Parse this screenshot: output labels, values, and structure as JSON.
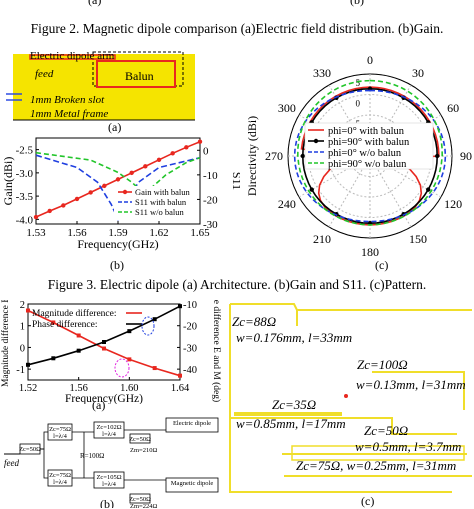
{
  "top_labels": {
    "a": "(a)",
    "b": "(b)"
  },
  "figure2_caption": "Figure 2. Magnetic dipole comparison (a)Electric field distribution. (b)Gain.",
  "figure3_caption": "Figure 3. Electric dipole (a) Architecture. (b)Gain and S11. (c)Pattern.",
  "fig3a": {
    "labels": {
      "arm": "Electric dipole arm",
      "feed": "feed",
      "balun": "Balun",
      "slot": "1mm Broken slot",
      "frame": "1mm Metal frame"
    },
    "sublabel": "(a)",
    "colors": {
      "substrate": "#f5e400",
      "outline": "#e8271f"
    }
  },
  "fig3b": {
    "sublabel": "(b)",
    "chart_data": {
      "type": "line",
      "xlabel": "Frequency(GHz)",
      "ylabel": "Gain(dBi)",
      "y2label": "S11",
      "x_ticks": [
        "1.53",
        "1.56",
        "1.59",
        "1.62",
        "1.65"
      ],
      "y_ticks": [
        "-2.5",
        "-3.0",
        "-3.5",
        "-4.0"
      ],
      "y2_ticks": [
        "0",
        "-10",
        "-20",
        "-30"
      ],
      "legend": [
        "Gain with balun",
        "S11 with balun",
        "S11 w/o balun"
      ],
      "series": [
        {
          "name": "Gain with balun",
          "axis": "left",
          "color": "#e8271f",
          "x": [
            1.53,
            1.54,
            1.55,
            1.56,
            1.57,
            1.58,
            1.59,
            1.6,
            1.61,
            1.62,
            1.63,
            1.64,
            1.65
          ],
          "y": [
            -3.95,
            -3.82,
            -3.7,
            -3.56,
            -3.42,
            -3.28,
            -3.14,
            -3.0,
            -2.86,
            -2.72,
            -2.58,
            -2.45,
            -2.33
          ]
        },
        {
          "name": "S11 with balun",
          "axis": "right",
          "color": "#1f3fe0",
          "x": [
            1.53,
            1.56,
            1.575,
            1.585,
            1.59,
            1.595,
            1.605,
            1.62,
            1.65
          ],
          "y": [
            -2,
            -7,
            -13,
            -22,
            -28,
            -22,
            -13,
            -7,
            -3
          ]
        },
        {
          "name": "S11 w/o balun",
          "axis": "right",
          "color": "#22c52a",
          "x": [
            1.53,
            1.57,
            1.59,
            1.6,
            1.61,
            1.615,
            1.625,
            1.64,
            1.65
          ],
          "y": [
            -1,
            -4,
            -9,
            -13,
            -18,
            -15,
            -10,
            -5,
            -3
          ]
        }
      ]
    }
  },
  "fig3c": {
    "sublabel": "(c)",
    "chart_data": {
      "type": "polar",
      "rlabel": "Directivity (dBi)",
      "angle_labels": [
        "0",
        "30",
        "60",
        "90",
        "120",
        "150",
        "180",
        "210",
        "240",
        "270",
        "300",
        "330"
      ],
      "r_ticks": [
        "5",
        "0",
        "-5",
        "-10"
      ],
      "legend": [
        "phi=0° with balun",
        "phi=90° with balun",
        "phi=0° w/o balun",
        "phi=90° w/o balun"
      ],
      "series": [
        {
          "name": "phi=0° with balun",
          "color": "#e8271f"
        },
        {
          "name": "phi=90° with balun",
          "color": "#000000"
        },
        {
          "name": "phi=0° w/o balun",
          "color": "#1f3fe0"
        },
        {
          "name": "phi=90° w/o balun",
          "color": "#22c52a"
        }
      ]
    }
  },
  "fig4a": {
    "sublabel": "(a)",
    "chart_data": {
      "type": "line",
      "xlabel": "Frequency(GHz)",
      "ylabel": "Magnitude difference E",
      "y2label": "Phase difference E and M (deg)",
      "x_ticks": [
        "1.52",
        "1.56",
        "1.60",
        "1.64"
      ],
      "y_ticks": [
        "2",
        "1",
        "0",
        "-1"
      ],
      "y2_ticks": [
        "-10",
        "-20",
        "-30",
        "-40"
      ],
      "legend": [
        "Magnitude difference:",
        "Phase difference:"
      ],
      "series": [
        {
          "name": "Magnitude difference:",
          "axis": "left",
          "color": "#e8271f",
          "x": [
            1.52,
            1.54,
            1.56,
            1.58,
            1.6,
            1.62,
            1.64
          ],
          "y": [
            1.7,
            1.15,
            0.55,
            -0.05,
            -0.55,
            -0.95,
            -1.3
          ]
        },
        {
          "name": "Phase difference:",
          "axis": "right",
          "color": "#000000",
          "x": [
            1.52,
            1.54,
            1.56,
            1.58,
            1.6,
            1.62,
            1.64
          ],
          "y": [
            -38,
            -35,
            -31.5,
            -27.5,
            -22.5,
            -17,
            -11
          ]
        }
      ]
    }
  },
  "fig4b": {
    "sublabel": "(b)",
    "feed": "feed",
    "boxes": [
      "Zc=50Ω",
      "Zc=75Ω",
      "l=λ/4",
      "Zc=75Ω",
      "l=λ/4",
      "R=100Ω",
      "Zc=102Ω",
      "l=λ/4",
      "Zc=105Ω",
      "l=λ/4",
      "Zc=50Ω",
      "Zc=50Ω",
      "Zm=210Ω",
      "Zm=224Ω",
      "Electric dipole",
      "Magnetic dipole"
    ]
  },
  "fig4c": {
    "sublabel": "(c)",
    "labels": [
      "Zc=88Ω",
      "w=0.176mm, l=33mm",
      "Zc=100Ω",
      "w=0.13mm, l=31mm",
      "Zc=35Ω",
      "w=0.85mm, l=17mm",
      "Zc=50Ω",
      "w=0.5mm, l=3.7mm",
      "Zc=75Ω, w=0.25mm, l=31mm"
    ],
    "colors": {
      "line": "#f0de2a"
    }
  }
}
